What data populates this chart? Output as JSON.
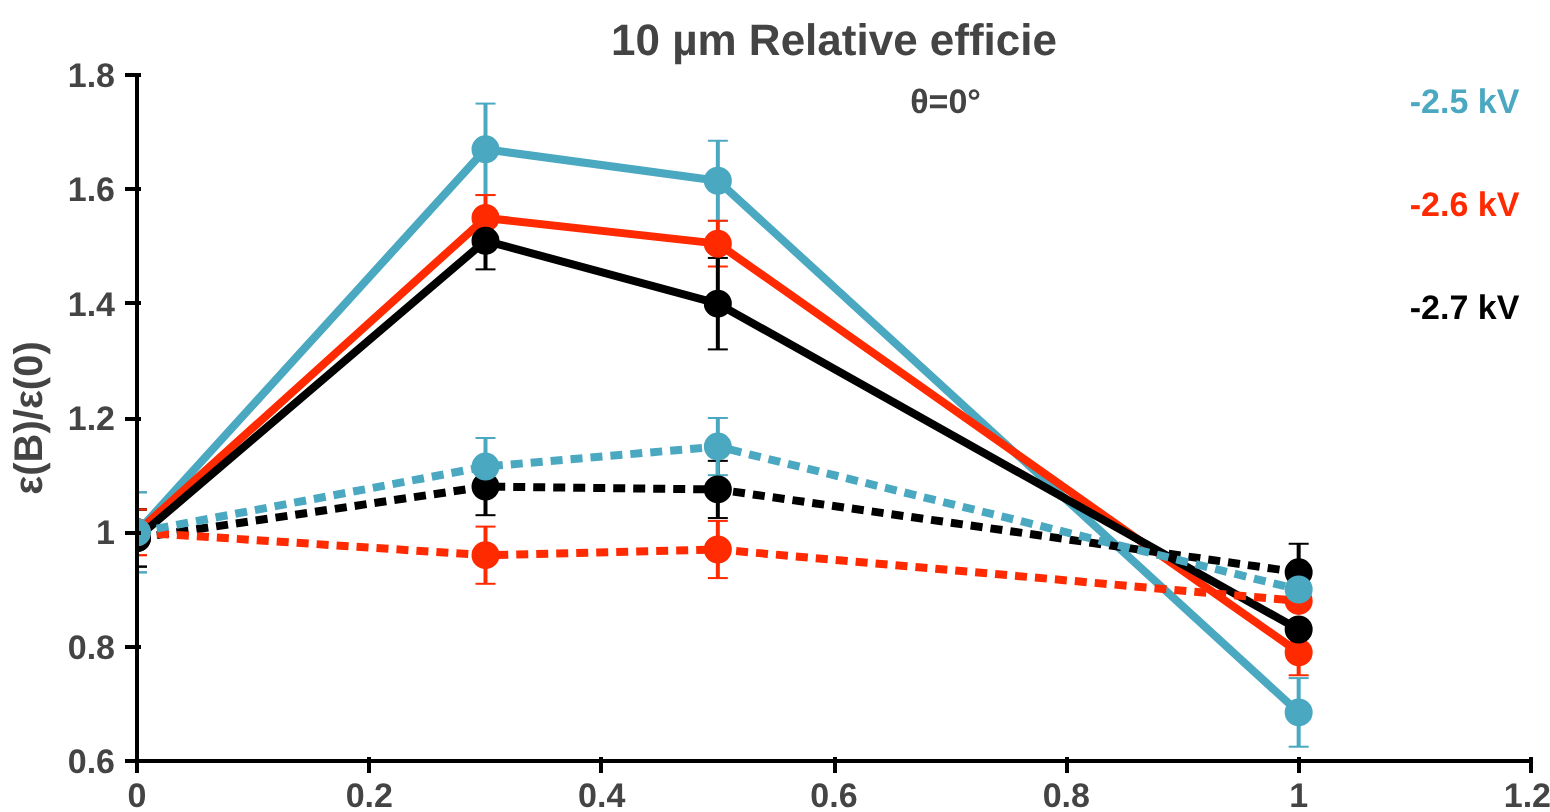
{
  "chart_data": {
    "type": "line",
    "title": "10 µm Relative efficie",
    "ylabel": "ε(B)/ε(0)",
    "x": [
      0,
      0.3,
      0.5,
      1
    ],
    "xlim": [
      0,
      1.2
    ],
    "xticks": [
      0,
      0.2,
      0.4,
      0.6,
      0.8,
      1,
      1.2
    ],
    "ylim": [
      0.6,
      1.8
    ],
    "yticks": [
      0.6,
      0.8,
      1,
      1.2,
      1.4,
      1.6,
      1.8
    ],
    "grid": false,
    "legend": "top right",
    "marker": "circle",
    "annotations": [
      "θ=0°"
    ],
    "series": [
      {
        "name": "-2.5 kV",
        "color": "#4aa8c0",
        "line_style": "solid",
        "values": [
          1.0,
          1.67,
          1.615,
          0.685
        ],
        "errors": [
          0.07,
          0.08,
          0.07,
          0.06
        ]
      },
      {
        "name": "-2.6 kV",
        "color": "#ff2a00",
        "line_style": "solid",
        "values": [
          1.0,
          1.55,
          1.505,
          0.79
        ],
        "errors": [
          0.04,
          0.04,
          0.04,
          0.04
        ]
      },
      {
        "name": "-2.7 kV",
        "color": "#000000",
        "line_style": "solid",
        "values": [
          0.99,
          1.51,
          1.4,
          0.83
        ],
        "errors": [
          0.05,
          0.05,
          0.08,
          null
        ]
      },
      {
        "color": "#000000",
        "line_style": "dashed",
        "values": [
          0.99,
          1.08,
          1.075,
          0.93
        ],
        "errors": [
          0.05,
          0.05,
          0.05,
          0.05
        ]
      },
      {
        "color": "#ff2a00",
        "line_style": "dashed",
        "values": [
          1.0,
          0.96,
          0.97,
          0.88
        ],
        "errors": [
          0.04,
          0.05,
          0.05,
          null
        ]
      },
      {
        "color": "#4aa8c0",
        "line_style": "dashed",
        "values": [
          1.0,
          1.115,
          1.15,
          0.9
        ],
        "errors": [
          0.07,
          0.05,
          0.05,
          null
        ]
      }
    ]
  }
}
